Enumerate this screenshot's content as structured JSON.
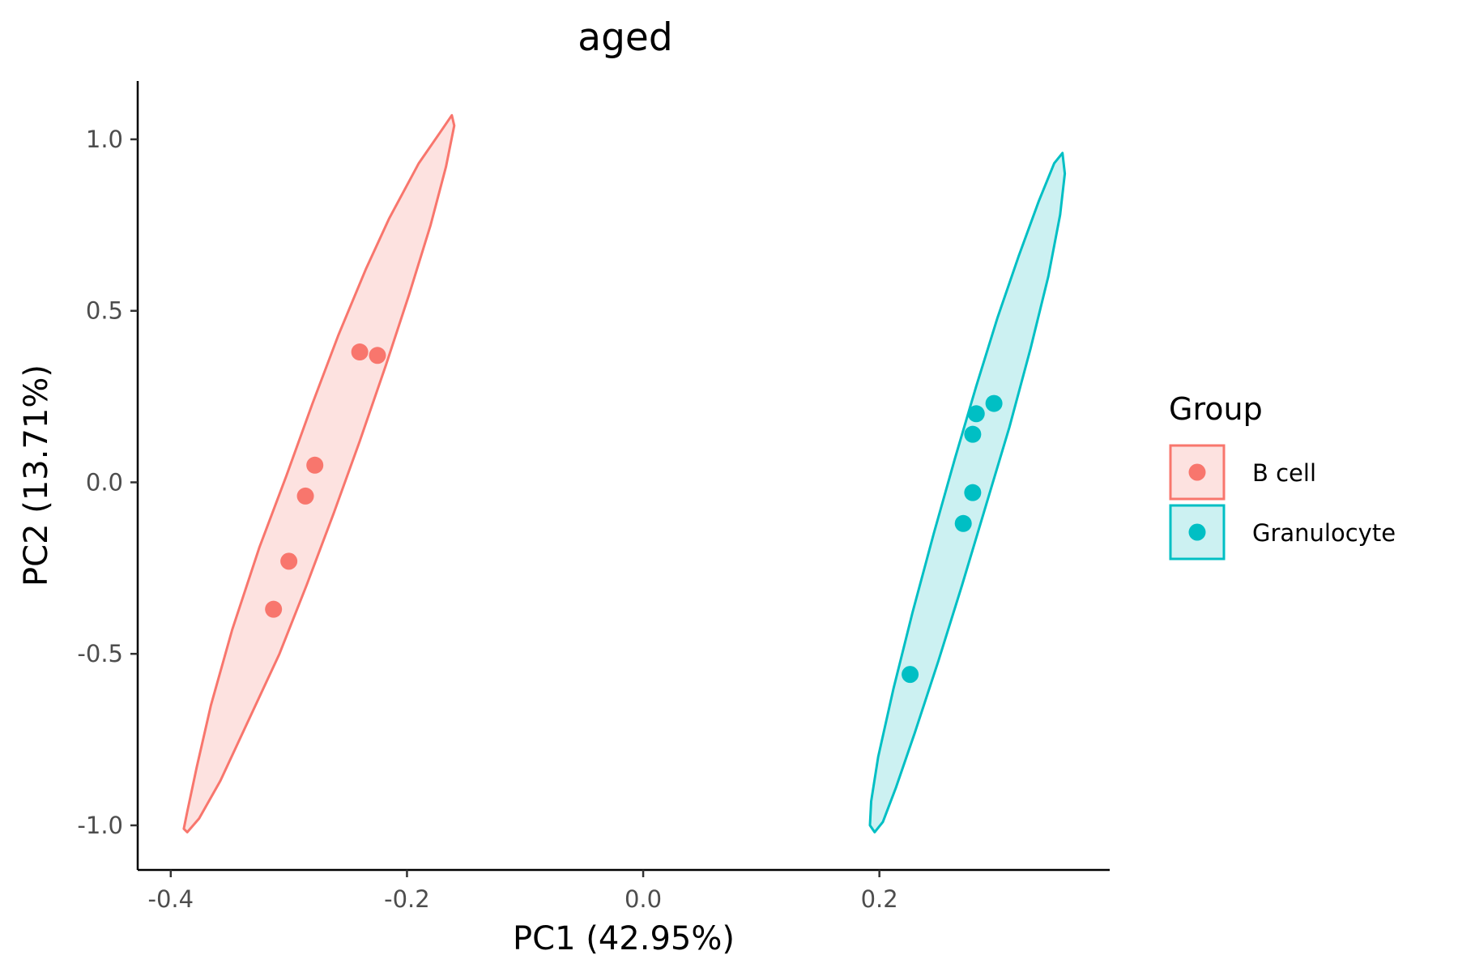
{
  "chart_data": {
    "type": "scatter",
    "title": "aged",
    "xlabel": "PC1 (42.95%)",
    "ylabel": "PC2 (13.71%)",
    "xlim": [
      -0.428,
      0.395
    ],
    "ylim": [
      -1.13,
      1.17
    ],
    "x_ticks": [
      -0.4,
      -0.2,
      0.0,
      0.2
    ],
    "x_tick_labels": [
      "-0.4",
      "-0.2",
      "0.0",
      "0.2"
    ],
    "y_ticks": [
      1.0,
      0.5,
      0.0,
      -0.5,
      -1.0
    ],
    "y_tick_labels": [
      "1.0",
      "0.5",
      "0.0",
      "-0.5",
      "-1.0"
    ],
    "grid": false,
    "legend": {
      "title": "Group",
      "position": "right"
    },
    "series": [
      {
        "name": "B cell",
        "color": "#f8766d",
        "fill": "#fde2e0",
        "points": [
          {
            "x": -0.24,
            "y": 0.38
          },
          {
            "x": -0.225,
            "y": 0.37
          },
          {
            "x": -0.278,
            "y": 0.05
          },
          {
            "x": -0.286,
            "y": -0.04
          },
          {
            "x": -0.3,
            "y": -0.23
          },
          {
            "x": -0.313,
            "y": -0.37
          }
        ],
        "ellipse": [
          [
            -0.162,
            1.07
          ],
          [
            -0.17,
            1.03
          ],
          [
            -0.19,
            0.93
          ],
          [
            -0.215,
            0.77
          ],
          [
            -0.235,
            0.62
          ],
          [
            -0.258,
            0.43
          ],
          [
            -0.28,
            0.23
          ],
          [
            -0.302,
            0.02
          ],
          [
            -0.325,
            -0.19
          ],
          [
            -0.348,
            -0.43
          ],
          [
            -0.366,
            -0.65
          ],
          [
            -0.378,
            -0.83
          ],
          [
            -0.386,
            -0.96
          ],
          [
            -0.389,
            -1.01
          ],
          [
            -0.386,
            -1.02
          ],
          [
            -0.376,
            -0.98
          ],
          [
            -0.358,
            -0.87
          ],
          [
            -0.335,
            -0.7
          ],
          [
            -0.308,
            -0.5
          ],
          [
            -0.285,
            -0.3
          ],
          [
            -0.262,
            -0.09
          ],
          [
            -0.24,
            0.12
          ],
          [
            -0.218,
            0.34
          ],
          [
            -0.198,
            0.55
          ],
          [
            -0.18,
            0.75
          ],
          [
            -0.167,
            0.92
          ],
          [
            -0.16,
            1.04
          ],
          [
            -0.162,
            1.07
          ]
        ]
      },
      {
        "name": "Granulocyte",
        "color": "#00bfc4",
        "fill": "#ccf1f2",
        "points": [
          {
            "x": 0.297,
            "y": 0.23
          },
          {
            "x": 0.282,
            "y": 0.2
          },
          {
            "x": 0.279,
            "y": 0.14
          },
          {
            "x": 0.279,
            "y": -0.03
          },
          {
            "x": 0.271,
            "y": -0.12
          },
          {
            "x": 0.226,
            "y": -0.56
          }
        ],
        "ellipse": [
          [
            0.355,
            0.96
          ],
          [
            0.348,
            0.93
          ],
          [
            0.335,
            0.82
          ],
          [
            0.318,
            0.66
          ],
          [
            0.3,
            0.48
          ],
          [
            0.282,
            0.28
          ],
          [
            0.264,
            0.07
          ],
          [
            0.246,
            -0.15
          ],
          [
            0.228,
            -0.38
          ],
          [
            0.212,
            -0.6
          ],
          [
            0.199,
            -0.8
          ],
          [
            0.193,
            -0.93
          ],
          [
            0.192,
            -1.0
          ],
          [
            0.196,
            -1.02
          ],
          [
            0.203,
            -0.99
          ],
          [
            0.214,
            -0.89
          ],
          [
            0.23,
            -0.73
          ],
          [
            0.25,
            -0.52
          ],
          [
            0.27,
            -0.3
          ],
          [
            0.29,
            -0.07
          ],
          [
            0.31,
            0.16
          ],
          [
            0.328,
            0.39
          ],
          [
            0.343,
            0.6
          ],
          [
            0.353,
            0.78
          ],
          [
            0.357,
            0.9
          ],
          [
            0.355,
            0.96
          ]
        ]
      }
    ]
  }
}
